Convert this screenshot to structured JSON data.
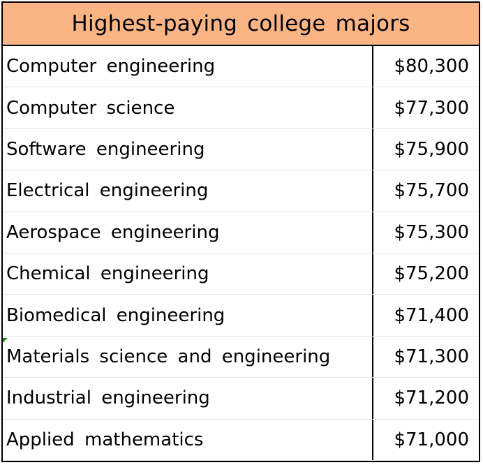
{
  "title": "Highest-paying college majors",
  "colors": {
    "header_background": "#fbb584",
    "border": "#000000",
    "row_divider": "#dfe4ea",
    "cell_marker": "#1f8a2a"
  },
  "rows": [
    {
      "major": "Computer engineering",
      "salary": "$80,300"
    },
    {
      "major": "Computer science",
      "salary": "$77,300"
    },
    {
      "major": "Software engineering",
      "salary": "$75,900"
    },
    {
      "major": "Electrical engineering",
      "salary": "$75,700"
    },
    {
      "major": "Aerospace engineering",
      "salary": "$75,300"
    },
    {
      "major": "Chemical engineering",
      "salary": "$75,200"
    },
    {
      "major": "Biomedical engineering",
      "salary": "$71,400"
    },
    {
      "major": "Materials science and engineering",
      "salary": "$71,300"
    },
    {
      "major": "Industrial engineering",
      "salary": "$71,200"
    },
    {
      "major": "Applied mathematics",
      "salary": "$71,000"
    }
  ]
}
